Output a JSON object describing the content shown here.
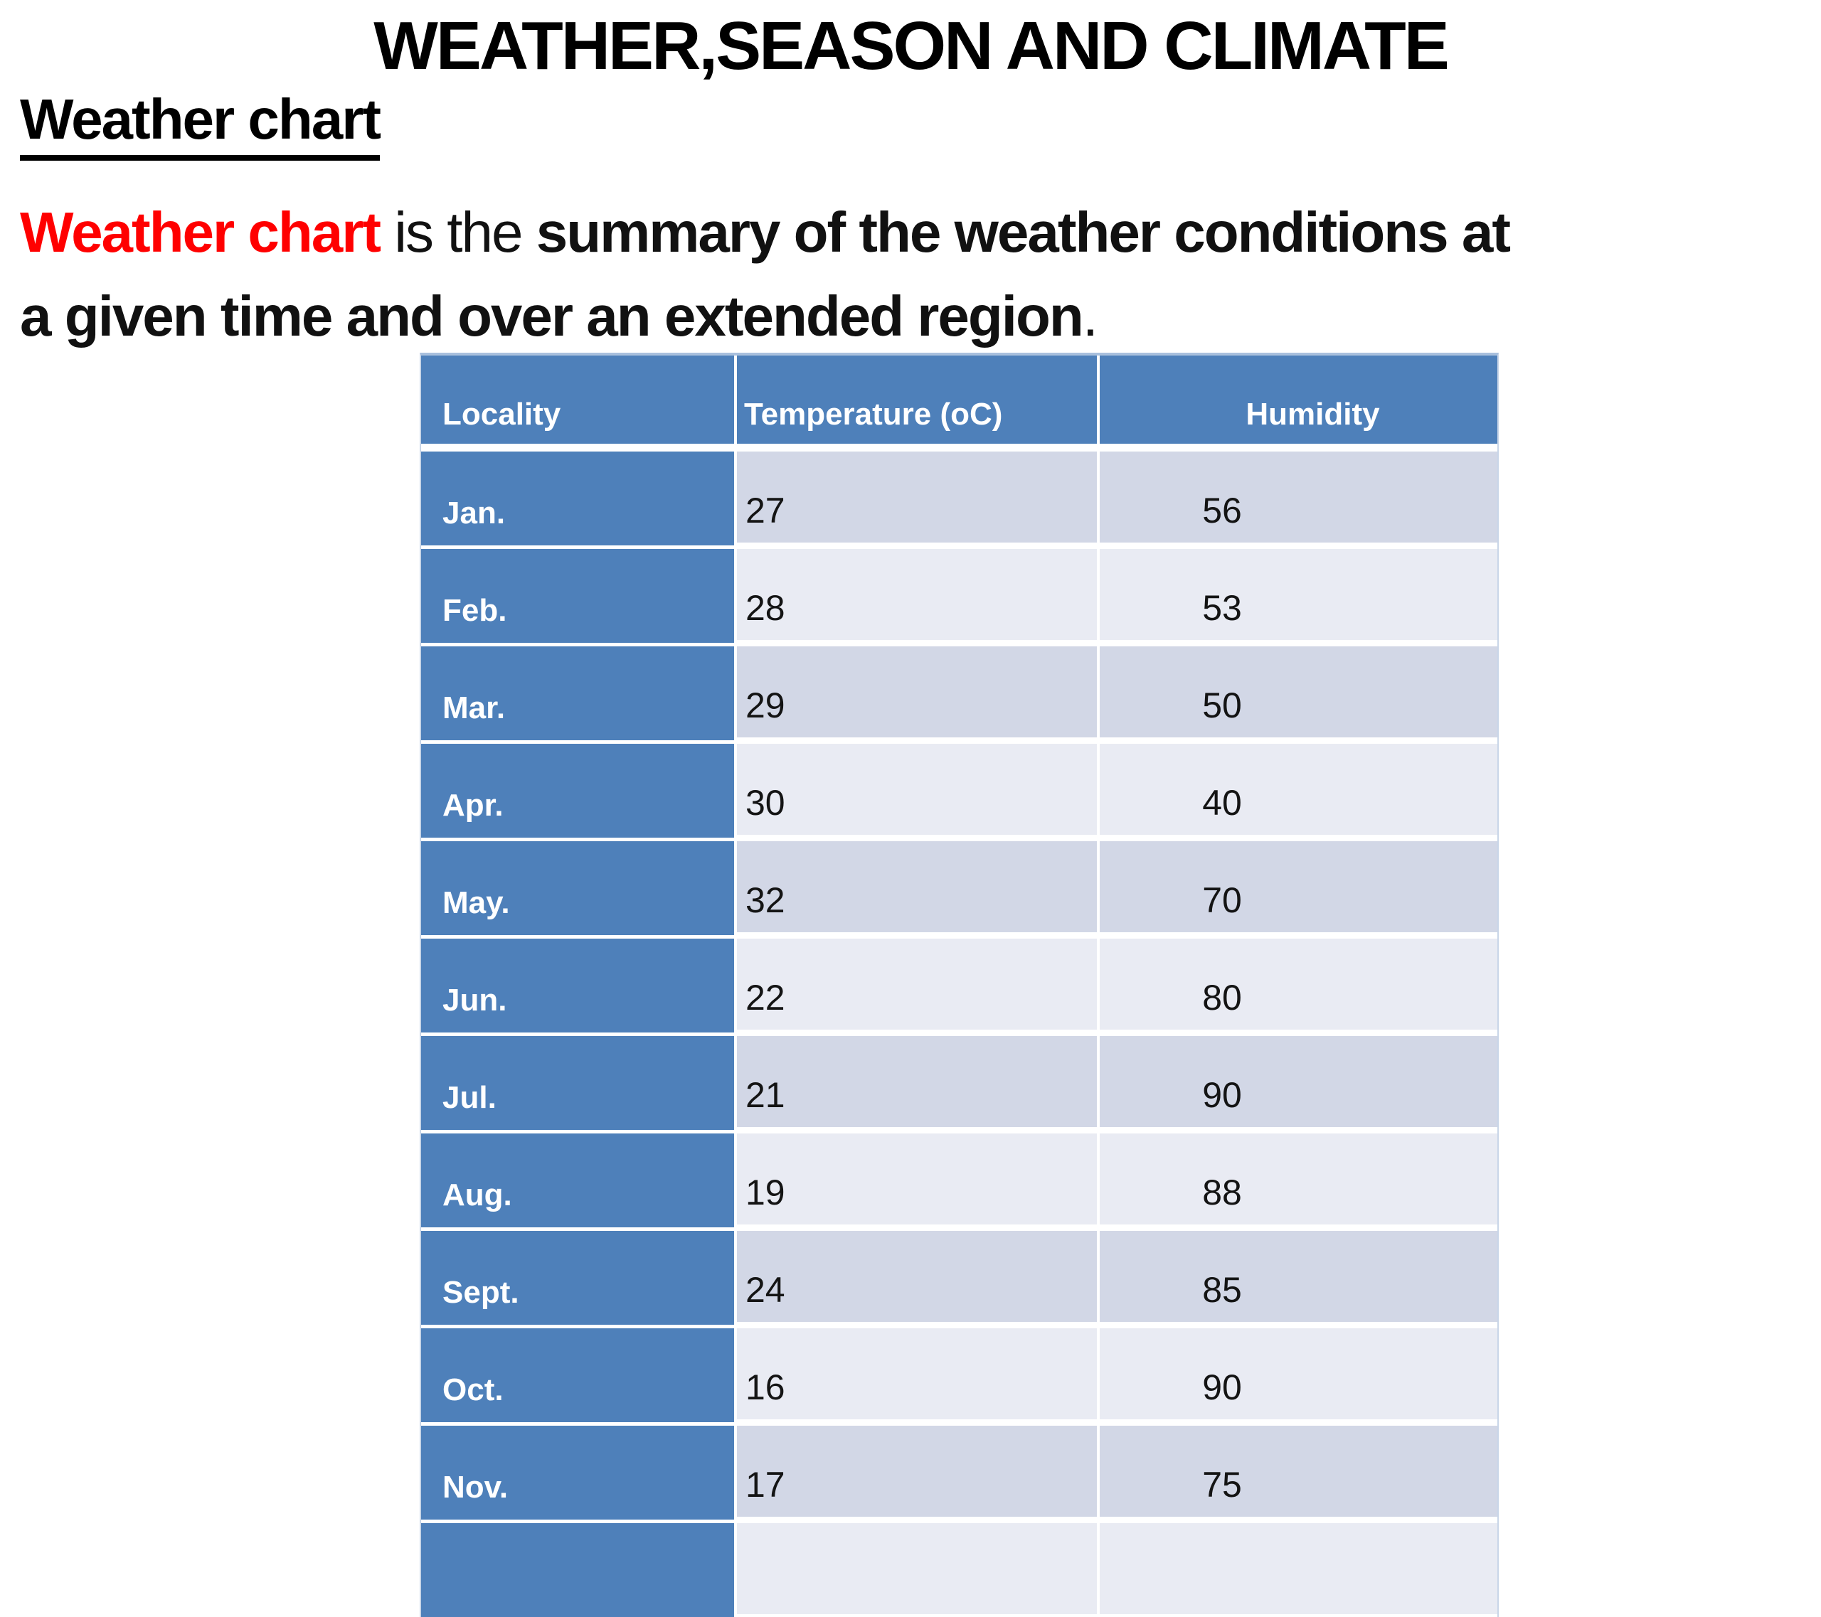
{
  "slide": {
    "title": "WEATHER,SEASON AND CLIMATE",
    "heading": "Weather chart",
    "paragraph": {
      "red_bold": "Weather chart",
      "regular_mid": " is the ",
      "bold_line1": "summary of the weather conditions at",
      "bold_line2": "a given time and over an extended region",
      "period": "."
    }
  },
  "table": {
    "headers": {
      "locality": "Locality",
      "temperature": "Temperature (oC)",
      "humidity": "Humidity"
    },
    "rows": [
      {
        "month": "Jan.",
        "temperature": "27",
        "humidity": "56"
      },
      {
        "month": "Feb.",
        "temperature": "28",
        "humidity": "53"
      },
      {
        "month": "Mar.",
        "temperature": "29",
        "humidity": "50"
      },
      {
        "month": "Apr.",
        "temperature": "30",
        "humidity": "40"
      },
      {
        "month": "May.",
        "temperature": "32",
        "humidity": "70"
      },
      {
        "month": "Jun.",
        "temperature": "22",
        "humidity": "80"
      },
      {
        "month": "Jul.",
        "temperature": "21",
        "humidity": "90"
      },
      {
        "month": "Aug.",
        "temperature": "19",
        "humidity": "88"
      },
      {
        "month": "Sept.",
        "temperature": "24",
        "humidity": "85"
      },
      {
        "month": "Oct.",
        "temperature": "16",
        "humidity": "90"
      },
      {
        "month": "Nov.",
        "temperature": "17",
        "humidity": "75"
      },
      {
        "month": "",
        "temperature": "",
        "humidity": ""
      }
    ]
  },
  "chart_data": {
    "type": "table",
    "title": "Weather chart",
    "categories": [
      "Jan.",
      "Feb.",
      "Mar.",
      "Apr.",
      "May.",
      "Jun.",
      "Jul.",
      "Aug.",
      "Sept.",
      "Oct.",
      "Nov."
    ],
    "series": [
      {
        "name": "Temperature (oC)",
        "values": [
          27,
          28,
          29,
          30,
          32,
          22,
          21,
          19,
          24,
          16,
          17
        ]
      },
      {
        "name": "Humidity",
        "values": [
          56,
          53,
          50,
          40,
          70,
          80,
          90,
          88,
          85,
          90,
          75
        ]
      }
    ]
  },
  "colors": {
    "header_blue": "#4e80ba",
    "row_band_dark": "#d2d7e6",
    "row_band_light": "#e9ebf3",
    "accent_red": "#ff0000",
    "table_outline": "#a9c0dd",
    "text_black": "#000000",
    "cell_text_white": "#ffffff"
  }
}
